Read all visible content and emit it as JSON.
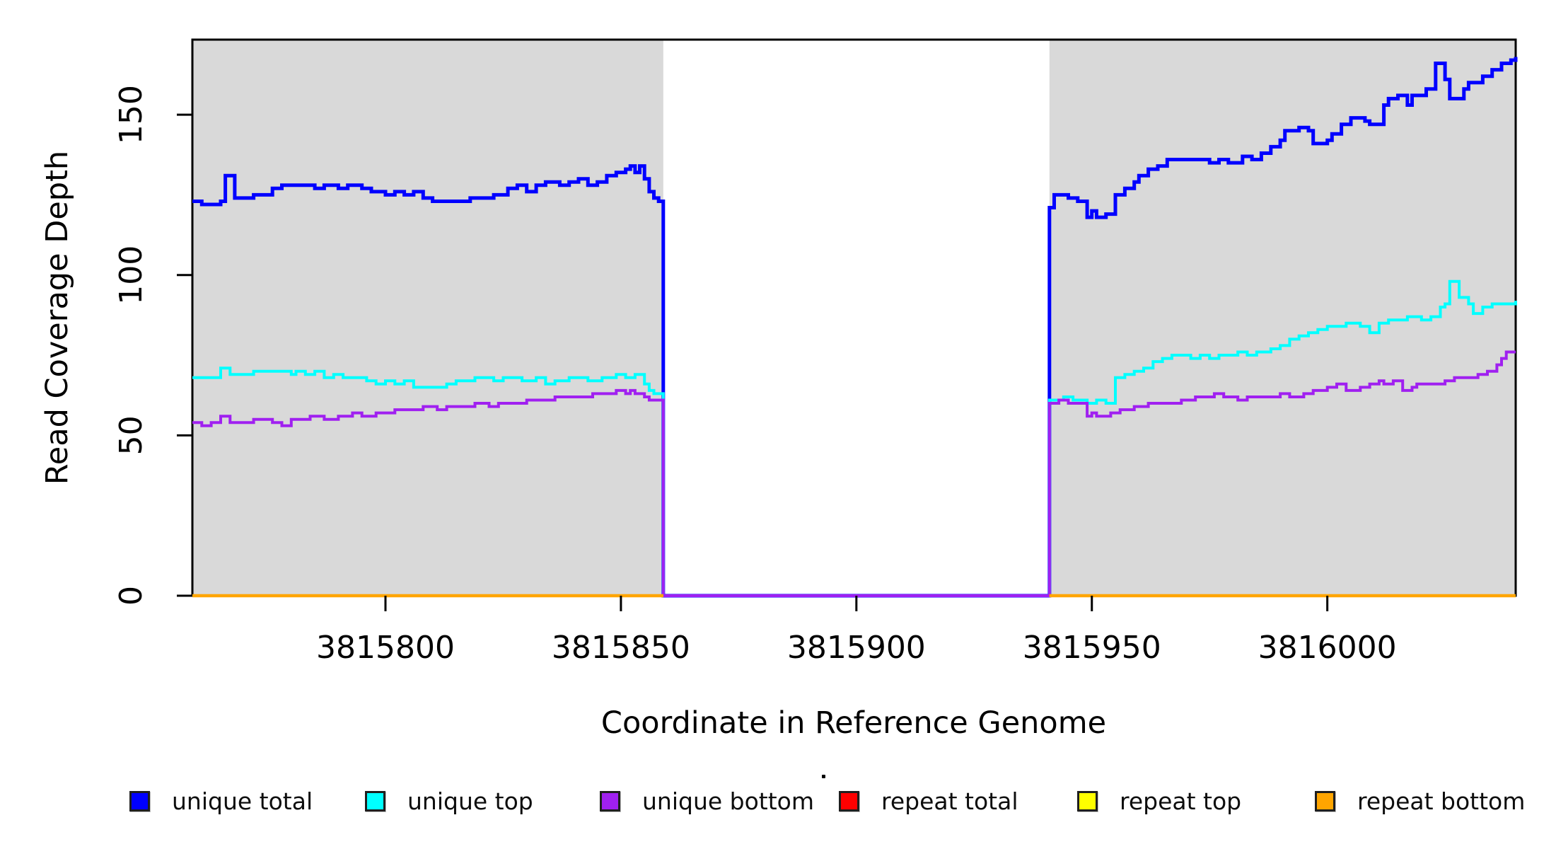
{
  "figure": {
    "x_axis_title": "Coordinate in Reference Genome",
    "y_axis_title": "Read Coverage Depth"
  },
  "chart_data": {
    "type": "line",
    "subtype": "step-after",
    "title": "",
    "xlabel": "Coordinate in Reference Genome",
    "ylabel": "Read Coverage Depth",
    "xlim": [
      3815759,
      3816040
    ],
    "ylim": [
      0,
      173
    ],
    "xticks": [
      3815800,
      3815850,
      3815900,
      3815950,
      3816000
    ],
    "yticks": [
      0,
      50,
      100,
      150
    ],
    "grid": false,
    "legend_position": "bottom",
    "background": "#ffffff",
    "shaded_regions": [
      {
        "x0": 3815759,
        "x1": 3815859,
        "color": "#d9d9d9",
        "note": "left aligned block"
      },
      {
        "x0": 3815941,
        "x1": 3816040,
        "color": "#d9d9d9",
        "note": "right aligned block"
      }
    ],
    "gap_region": {
      "x0": 3815859,
      "x1": 3815941,
      "note": "unique coverage drops to 0; repeat series flat at 0 only in shaded blocks"
    },
    "series": [
      {
        "name": "unique total",
        "color": "#0000ff",
        "width": 5,
        "segments": [
          [
            [
              3815759,
              123
            ],
            [
              3815761,
              122
            ],
            [
              3815765,
              123
            ],
            [
              3815766,
              131
            ],
            [
              3815768,
              124
            ],
            [
              3815772,
              125
            ],
            [
              3815776,
              127
            ],
            [
              3815778,
              128
            ],
            [
              3815785,
              127
            ],
            [
              3815787,
              128
            ],
            [
              3815790,
              127
            ],
            [
              3815792,
              128
            ],
            [
              3815795,
              127
            ],
            [
              3815797,
              126
            ],
            [
              3815800,
              125
            ],
            [
              3815802,
              126
            ],
            [
              3815804,
              125
            ],
            [
              3815806,
              126
            ],
            [
              3815808,
              124
            ],
            [
              3815810,
              123
            ],
            [
              3815818,
              124
            ],
            [
              3815823,
              125
            ],
            [
              3815826,
              127
            ],
            [
              3815828,
              128
            ],
            [
              3815830,
              126
            ],
            [
              3815832,
              128
            ],
            [
              3815834,
              129
            ],
            [
              3815837,
              128
            ],
            [
              3815839,
              129
            ],
            [
              3815841,
              130
            ],
            [
              3815843,
              128
            ],
            [
              3815845,
              129
            ],
            [
              3815847,
              131
            ],
            [
              3815849,
              132
            ],
            [
              3815851,
              133
            ],
            [
              3815852,
              134
            ],
            [
              3815853,
              132
            ],
            [
              3815854,
              134
            ],
            [
              3815855,
              130
            ],
            [
              3815856,
              126
            ],
            [
              3815857,
              124
            ],
            [
              3815858,
              123
            ],
            [
              3815859,
              0
            ],
            [
              3815941,
              121
            ],
            [
              3815942,
              125
            ],
            [
              3815945,
              124
            ],
            [
              3815947,
              123
            ],
            [
              3815949,
              118
            ],
            [
              3815950,
              120
            ],
            [
              3815951,
              118
            ],
            [
              3815953,
              119
            ],
            [
              3815955,
              125
            ],
            [
              3815957,
              127
            ],
            [
              3815959,
              129
            ],
            [
              3815960,
              131
            ],
            [
              3815962,
              133
            ],
            [
              3815964,
              134
            ],
            [
              3815966,
              136
            ],
            [
              3815975,
              135
            ],
            [
              3815977,
              136
            ],
            [
              3815979,
              135
            ],
            [
              3815982,
              137
            ],
            [
              3815984,
              136
            ],
            [
              3815986,
              138
            ],
            [
              3815988,
              140
            ],
            [
              3815990,
              142
            ],
            [
              3815991,
              145
            ],
            [
              3815994,
              146
            ],
            [
              3815996,
              145
            ],
            [
              3815997,
              141
            ],
            [
              3816000,
              142
            ],
            [
              3816001,
              144
            ],
            [
              3816003,
              147
            ],
            [
              3816005,
              149
            ],
            [
              3816008,
              148
            ],
            [
              3816009,
              147
            ],
            [
              3816012,
              153
            ],
            [
              3816013,
              155
            ],
            [
              3816015,
              156
            ],
            [
              3816017,
              153
            ],
            [
              3816018,
              156
            ],
            [
              3816021,
              158
            ],
            [
              3816023,
              166
            ],
            [
              3816025,
              161
            ],
            [
              3816026,
              155
            ],
            [
              3816029,
              158
            ],
            [
              3816030,
              160
            ],
            [
              3816033,
              162
            ],
            [
              3816035,
              164
            ],
            [
              3816037,
              166
            ],
            [
              3816039,
              167
            ],
            [
              3816040,
              168
            ]
          ]
        ]
      },
      {
        "name": "unique top",
        "color": "#00ffff",
        "width": 4,
        "segments": [
          [
            [
              3815759,
              68
            ],
            [
              3815765,
              71
            ],
            [
              3815767,
              69
            ],
            [
              3815772,
              70
            ],
            [
              3815780,
              69
            ],
            [
              3815781,
              70
            ],
            [
              3815783,
              69
            ],
            [
              3815785,
              70
            ],
            [
              3815787,
              68
            ],
            [
              3815789,
              69
            ],
            [
              3815791,
              68
            ],
            [
              3815796,
              67
            ],
            [
              3815798,
              66
            ],
            [
              3815800,
              67
            ],
            [
              3815802,
              66
            ],
            [
              3815804,
              67
            ],
            [
              3815806,
              65
            ],
            [
              3815813,
              66
            ],
            [
              3815815,
              67
            ],
            [
              3815819,
              68
            ],
            [
              3815823,
              67
            ],
            [
              3815825,
              68
            ],
            [
              3815829,
              67
            ],
            [
              3815832,
              68
            ],
            [
              3815834,
              66
            ],
            [
              3815836,
              67
            ],
            [
              3815839,
              68
            ],
            [
              3815843,
              67
            ],
            [
              3815846,
              68
            ],
            [
              3815849,
              69
            ],
            [
              3815851,
              68
            ],
            [
              3815853,
              69
            ],
            [
              3815855,
              66
            ],
            [
              3815856,
              64
            ],
            [
              3815857,
              63
            ],
            [
              3815859,
              0
            ],
            [
              3815941,
              61
            ],
            [
              3815944,
              62
            ],
            [
              3815946,
              61
            ],
            [
              3815949,
              60
            ],
            [
              3815951,
              61
            ],
            [
              3815953,
              60
            ],
            [
              3815955,
              68
            ],
            [
              3815957,
              69
            ],
            [
              3815959,
              70
            ],
            [
              3815961,
              71
            ],
            [
              3815963,
              73
            ],
            [
              3815965,
              74
            ],
            [
              3815967,
              75
            ],
            [
              3815971,
              74
            ],
            [
              3815973,
              75
            ],
            [
              3815975,
              74
            ],
            [
              3815977,
              75
            ],
            [
              3815981,
              76
            ],
            [
              3815983,
              75
            ],
            [
              3815985,
              76
            ],
            [
              3815988,
              77
            ],
            [
              3815990,
              78
            ],
            [
              3815992,
              80
            ],
            [
              3815994,
              81
            ],
            [
              3815996,
              82
            ],
            [
              3815998,
              83
            ],
            [
              3816000,
              84
            ],
            [
              3816004,
              85
            ],
            [
              3816007,
              84
            ],
            [
              3816009,
              82
            ],
            [
              3816011,
              85
            ],
            [
              3816013,
              86
            ],
            [
              3816017,
              87
            ],
            [
              3816020,
              86
            ],
            [
              3816022,
              87
            ],
            [
              3816024,
              90
            ],
            [
              3816025,
              91
            ],
            [
              3816026,
              98
            ],
            [
              3816028,
              93
            ],
            [
              3816030,
              91
            ],
            [
              3816031,
              88
            ],
            [
              3816033,
              90
            ],
            [
              3816035,
              91
            ],
            [
              3816040,
              92
            ]
          ]
        ]
      },
      {
        "name": "unique bottom",
        "color": "#a020f0",
        "width": 4,
        "segments": [
          [
            [
              3815759,
              54
            ],
            [
              3815761,
              53
            ],
            [
              3815763,
              54
            ],
            [
              3815765,
              56
            ],
            [
              3815767,
              54
            ],
            [
              3815772,
              55
            ],
            [
              3815776,
              54
            ],
            [
              3815778,
              53
            ],
            [
              3815780,
              55
            ],
            [
              3815784,
              56
            ],
            [
              3815787,
              55
            ],
            [
              3815790,
              56
            ],
            [
              3815793,
              57
            ],
            [
              3815795,
              56
            ],
            [
              3815798,
              57
            ],
            [
              3815802,
              58
            ],
            [
              3815808,
              59
            ],
            [
              3815811,
              58
            ],
            [
              3815813,
              59
            ],
            [
              3815819,
              60
            ],
            [
              3815822,
              59
            ],
            [
              3815824,
              60
            ],
            [
              3815830,
              61
            ],
            [
              3815836,
              62
            ],
            [
              3815842,
              62
            ],
            [
              3815844,
              63
            ],
            [
              3815847,
              63
            ],
            [
              3815849,
              64
            ],
            [
              3815851,
              63
            ],
            [
              3815852,
              64
            ],
            [
              3815853,
              63
            ],
            [
              3815855,
              62
            ],
            [
              3815856,
              61
            ],
            [
              3815859,
              0
            ],
            [
              3815941,
              60
            ],
            [
              3815943,
              61
            ],
            [
              3815945,
              60
            ],
            [
              3815949,
              56
            ],
            [
              3815950,
              57
            ],
            [
              3815951,
              56
            ],
            [
              3815954,
              57
            ],
            [
              3815956,
              58
            ],
            [
              3815959,
              59
            ],
            [
              3815962,
              60
            ],
            [
              3815969,
              61
            ],
            [
              3815972,
              62
            ],
            [
              3815976,
              63
            ],
            [
              3815978,
              62
            ],
            [
              3815981,
              61
            ],
            [
              3815983,
              62
            ],
            [
              3815990,
              63
            ],
            [
              3815992,
              62
            ],
            [
              3815995,
              63
            ],
            [
              3815997,
              64
            ],
            [
              3816000,
              65
            ],
            [
              3816002,
              66
            ],
            [
              3816004,
              64
            ],
            [
              3816007,
              65
            ],
            [
              3816009,
              66
            ],
            [
              3816011,
              67
            ],
            [
              3816012,
              66
            ],
            [
              3816014,
              67
            ],
            [
              3816016,
              64
            ],
            [
              3816018,
              65
            ],
            [
              3816019,
              66
            ],
            [
              3816025,
              67
            ],
            [
              3816027,
              68
            ],
            [
              3816032,
              69
            ],
            [
              3816034,
              70
            ],
            [
              3816036,
              72
            ],
            [
              3816037,
              74
            ],
            [
              3816038,
              76
            ],
            [
              3816040,
              76
            ]
          ]
        ]
      },
      {
        "name": "repeat total",
        "color": "#ff0000",
        "width": 4,
        "segments": [
          [
            [
              3815759,
              0
            ],
            [
              3815859,
              0
            ]
          ],
          [
            [
              3815941,
              0
            ],
            [
              3816040,
              0
            ]
          ]
        ]
      },
      {
        "name": "repeat top",
        "color": "#ffff00",
        "width": 4,
        "segments": [
          [
            [
              3815759,
              0
            ],
            [
              3815859,
              0
            ]
          ],
          [
            [
              3815941,
              0
            ],
            [
              3816040,
              0
            ]
          ]
        ]
      },
      {
        "name": "repeat bottom",
        "color": "#ffa500",
        "width": 4.5,
        "segments": [
          [
            [
              3815759,
              0
            ],
            [
              3815859,
              0
            ]
          ],
          [
            [
              3815941,
              0
            ],
            [
              3816040,
              0
            ]
          ]
        ]
      }
    ]
  }
}
